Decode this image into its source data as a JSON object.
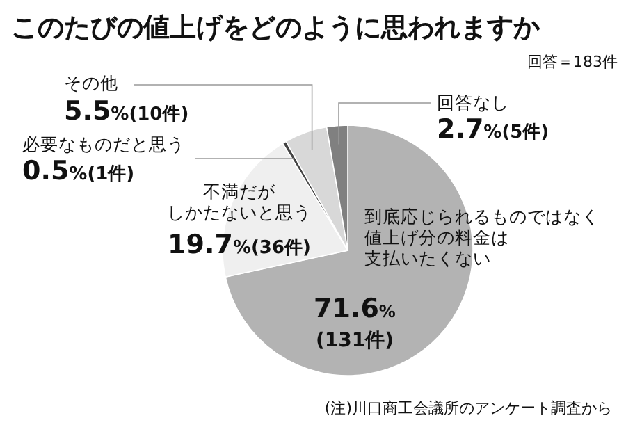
{
  "chart_data": {
    "type": "pie",
    "title": "このたびの値上げをどのように思われますか",
    "subtitle": "回答＝183件",
    "categories": [
      "到底応じられるものではなく値上げ分の料金は支払いたくない",
      "不満だがしかたないと思う",
      "必要なものだと思う",
      "その他",
      "回答なし"
    ],
    "values": [
      71.6,
      19.7,
      0.5,
      5.5,
      2.7
    ],
    "value_labels": [
      "71.6%(131件)",
      "19.7%(36件)",
      "0.5%(1件)",
      "5.5%(10件)",
      "2.7%(5件)"
    ],
    "colors": [
      "#b3b3b3",
      "#efefef",
      "#444444",
      "#d8d8d8",
      "#808080"
    ],
    "annotations": [
      "(注)川口商工会議所のアンケート調査から"
    ]
  }
}
